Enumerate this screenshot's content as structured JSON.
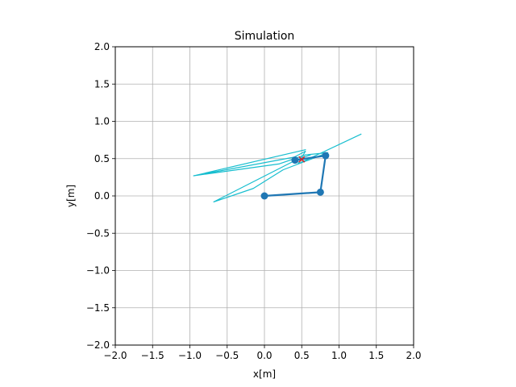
{
  "chart_data": {
    "type": "line",
    "title": "Simulation",
    "xlabel": "x[m]",
    "ylabel": "y[m]",
    "xlim": [
      -2.0,
      2.0
    ],
    "ylim": [
      -2.0,
      2.0
    ],
    "xticks": [
      "−2.0",
      "−1.5",
      "−1.0",
      "−0.5",
      "0.0",
      "0.5",
      "1.0",
      "1.5",
      "2.0"
    ],
    "yticks": [
      "−2.0",
      "−1.5",
      "−1.0",
      "−0.5",
      "0.0",
      "0.5",
      "1.0",
      "1.5",
      "2.0"
    ],
    "grid": true,
    "colors": {
      "trajectory": "#17becf",
      "arm": "#1f77b4",
      "target": "#d62728",
      "grid": "#b0b0b0"
    },
    "series": [
      {
        "points": [
          [
            1.3,
            0.83
          ],
          [
            0.45,
            0.43
          ],
          [
            0.55,
            0.6
          ],
          [
            0.4,
            0.52
          ],
          [
            -0.95,
            0.27
          ],
          [
            0.55,
            0.62
          ],
          [
            -0.95,
            0.27
          ],
          [
            0.2,
            0.43
          ],
          [
            0.55,
            0.55
          ],
          [
            0.85,
            0.58
          ],
          [
            0.25,
            0.35
          ],
          [
            -0.15,
            0.1
          ],
          [
            -0.68,
            -0.08
          ],
          [
            0.42,
            0.48
          ],
          [
            0.62,
            0.55
          ]
        ]
      },
      {
        "points": [
          [
            0.0,
            0.0
          ],
          [
            0.75,
            0.05
          ],
          [
            0.82,
            0.54
          ],
          [
            0.41,
            0.48
          ]
        ]
      }
    ],
    "target": [
      0.5,
      0.49
    ]
  }
}
